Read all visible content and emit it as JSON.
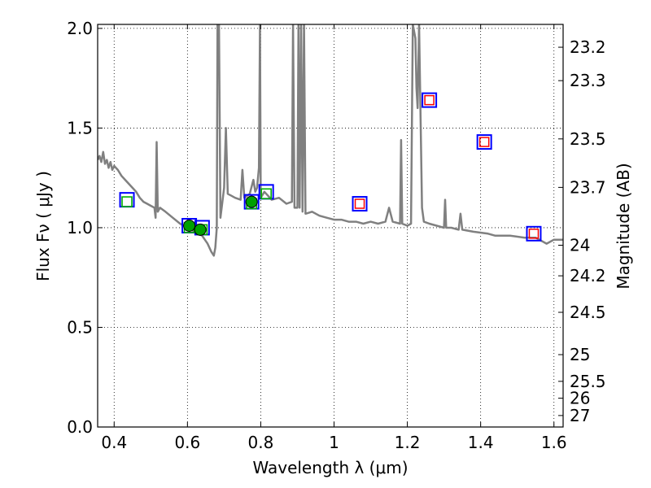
{
  "chart_data": {
    "type": "line",
    "title": "",
    "xlabel": "Wavelength  λ (μm)",
    "ylabel_left": "Flux  Fν  ( μJy )",
    "ylabel_right": "Magnitude (AB)",
    "xlim": [
      0.355,
      1.625
    ],
    "ylim": [
      0.0,
      2.02
    ],
    "grid": true,
    "x_ticks": [
      {
        "value": 0.4,
        "label": "0.4"
      },
      {
        "value": 0.6,
        "label": "0.6"
      },
      {
        "value": 0.8,
        "label": "0.8"
      },
      {
        "value": 1.0,
        "label": "1"
      },
      {
        "value": 1.2,
        "label": "1.2"
      },
      {
        "value": 1.4,
        "label": "1.4"
      },
      {
        "value": 1.6,
        "label": "1.6"
      }
    ],
    "y_ticks_left": [
      {
        "value": 0.0,
        "label": "0.0"
      },
      {
        "value": 0.5,
        "label": "0.5"
      },
      {
        "value": 1.0,
        "label": "1.0"
      },
      {
        "value": 1.5,
        "label": "1.5"
      },
      {
        "value": 2.0,
        "label": "2.0"
      }
    ],
    "y_ticks_right": [
      {
        "value": 23.2,
        "label": "23.2"
      },
      {
        "value": 23.3,
        "label": "23.3"
      },
      {
        "value": 23.5,
        "label": "23.5"
      },
      {
        "value": 23.7,
        "label": "23.7"
      },
      {
        "value": 24.0,
        "label": "24"
      },
      {
        "value": 24.2,
        "label": "24.2"
      },
      {
        "value": 24.5,
        "label": "24.5"
      },
      {
        "value": 25.0,
        "label": "25"
      },
      {
        "value": 25.5,
        "label": "25.5"
      },
      {
        "value": 26.0,
        "label": "26"
      },
      {
        "value": 27.0,
        "label": "27"
      }
    ],
    "magnitude_zero_point_ujy": 23.9,
    "spectrum": {
      "color": "#808080",
      "points": [
        [
          0.355,
          1.34
        ],
        [
          0.36,
          1.36
        ],
        [
          0.365,
          1.33
        ],
        [
          0.37,
          1.38
        ],
        [
          0.375,
          1.32
        ],
        [
          0.38,
          1.34
        ],
        [
          0.385,
          1.3
        ],
        [
          0.39,
          1.33
        ],
        [
          0.395,
          1.29
        ],
        [
          0.4,
          1.31
        ],
        [
          0.41,
          1.29
        ],
        [
          0.42,
          1.26
        ],
        [
          0.43,
          1.24
        ],
        [
          0.44,
          1.22
        ],
        [
          0.45,
          1.2
        ],
        [
          0.46,
          1.18
        ],
        [
          0.47,
          1.15
        ],
        [
          0.48,
          1.13
        ],
        [
          0.49,
          1.12
        ],
        [
          0.5,
          1.11
        ],
        [
          0.51,
          1.1
        ],
        [
          0.513,
          1.05
        ],
        [
          0.516,
          1.43
        ],
        [
          0.519,
          1.08
        ],
        [
          0.525,
          1.1
        ],
        [
          0.54,
          1.08
        ],
        [
          0.56,
          1.05
        ],
        [
          0.58,
          1.02
        ],
        [
          0.6,
          1.0
        ],
        [
          0.62,
          0.98
        ],
        [
          0.64,
          0.96
        ],
        [
          0.655,
          0.92
        ],
        [
          0.665,
          0.88
        ],
        [
          0.672,
          0.86
        ],
        [
          0.676,
          0.9
        ],
        [
          0.68,
          1.0
        ],
        [
          0.682,
          2.02
        ],
        [
          0.686,
          2.02
        ],
        [
          0.69,
          1.05
        ],
        [
          0.7,
          1.2
        ],
        [
          0.705,
          1.5
        ],
        [
          0.71,
          1.17
        ],
        [
          0.72,
          1.16
        ],
        [
          0.73,
          1.15
        ],
        [
          0.745,
          1.14
        ],
        [
          0.75,
          1.29
        ],
        [
          0.755,
          1.15
        ],
        [
          0.77,
          1.17
        ],
        [
          0.78,
          1.24
        ],
        [
          0.785,
          1.18
        ],
        [
          0.79,
          1.2
        ],
        [
          0.795,
          1.3
        ],
        [
          0.798,
          2.02
        ],
        [
          0.8,
          1.15
        ],
        [
          0.81,
          1.18
        ],
        [
          0.83,
          1.14
        ],
        [
          0.85,
          1.15
        ],
        [
          0.87,
          1.12
        ],
        [
          0.885,
          1.13
        ],
        [
          0.888,
          2.02
        ],
        [
          0.892,
          1.1
        ],
        [
          0.9,
          1.1
        ],
        [
          0.903,
          2.02
        ],
        [
          0.906,
          1.1
        ],
        [
          0.91,
          2.02
        ],
        [
          0.914,
          1.08
        ],
        [
          0.918,
          2.02
        ],
        [
          0.922,
          1.07
        ],
        [
          0.94,
          1.08
        ],
        [
          0.96,
          1.06
        ],
        [
          0.98,
          1.05
        ],
        [
          1.0,
          1.04
        ],
        [
          1.02,
          1.04
        ],
        [
          1.04,
          1.03
        ],
        [
          1.06,
          1.03
        ],
        [
          1.08,
          1.02
        ],
        [
          1.1,
          1.03
        ],
        [
          1.12,
          1.02
        ],
        [
          1.14,
          1.03
        ],
        [
          1.15,
          1.1
        ],
        [
          1.16,
          1.03
        ],
        [
          1.18,
          1.02
        ],
        [
          1.183,
          1.44
        ],
        [
          1.186,
          1.02
        ],
        [
          1.2,
          1.01
        ],
        [
          1.21,
          1.02
        ],
        [
          1.215,
          2.02
        ],
        [
          1.222,
          1.95
        ],
        [
          1.225,
          1.7
        ],
        [
          1.228,
          1.6
        ],
        [
          1.232,
          2.02
        ],
        [
          1.24,
          1.1
        ],
        [
          1.245,
          1.03
        ],
        [
          1.26,
          1.02
        ],
        [
          1.28,
          1.01
        ],
        [
          1.3,
          1.0
        ],
        [
          1.303,
          1.14
        ],
        [
          1.306,
          1.0
        ],
        [
          1.32,
          1.0
        ],
        [
          1.34,
          0.99
        ],
        [
          1.345,
          1.07
        ],
        [
          1.35,
          0.99
        ],
        [
          1.38,
          0.98
        ],
        [
          1.42,
          0.97
        ],
        [
          1.44,
          0.96
        ],
        [
          1.48,
          0.96
        ],
        [
          1.52,
          0.95
        ],
        [
          1.55,
          0.95
        ],
        [
          1.58,
          0.92
        ],
        [
          1.6,
          0.94
        ],
        [
          1.625,
          0.94
        ]
      ]
    },
    "blue_squares": [
      [
        0.435,
        1.14
      ],
      [
        0.605,
        1.01
      ],
      [
        0.64,
        1.0
      ],
      [
        0.775,
        1.13
      ],
      [
        0.815,
        1.18
      ],
      [
        1.07,
        1.12
      ],
      [
        1.26,
        1.64
      ],
      [
        1.41,
        1.43
      ],
      [
        1.545,
        0.97
      ]
    ],
    "green_squares": [
      [
        0.435,
        1.13
      ],
      [
        0.605,
        1.0
      ],
      [
        0.64,
        0.99
      ],
      [
        0.775,
        1.12
      ],
      [
        0.815,
        1.17
      ]
    ],
    "red_squares": [
      [
        1.07,
        1.12
      ],
      [
        1.26,
        1.64
      ],
      [
        1.41,
        1.43
      ],
      [
        1.545,
        0.97
      ]
    ],
    "green_circles": [
      {
        "x": 0.605,
        "y": 1.01,
        "err": 0.03
      },
      {
        "x": 0.635,
        "y": 0.99,
        "err": 0.03
      },
      {
        "x": 0.775,
        "y": 1.13,
        "err": 0.03
      }
    ],
    "colors": {
      "spectrum": "#808080",
      "blue_square": "#0000ff",
      "green_square": "#00b000",
      "red_square": "#ff0000",
      "green_circle": "#00a000"
    }
  }
}
